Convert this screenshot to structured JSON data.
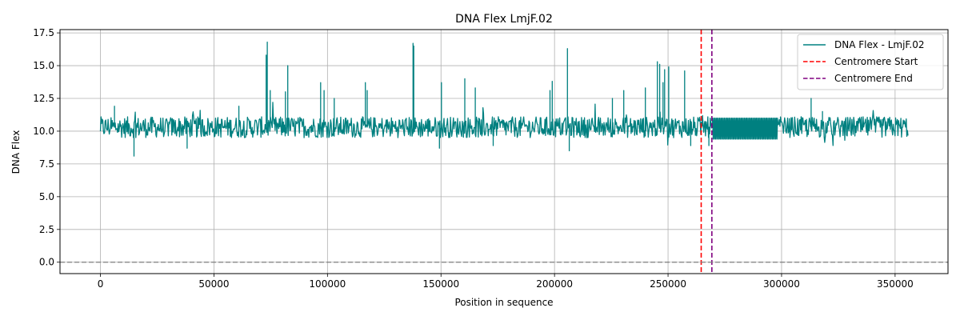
{
  "chart_data": {
    "type": "line",
    "title": "DNA Flex LmjF.02",
    "xlabel": "Position in sequence",
    "ylabel": "DNA Flex",
    "xlim": [
      -17800,
      373300
    ],
    "ylim": [
      -0.87,
      17.75
    ],
    "xticks": [
      0,
      50000,
      100000,
      150000,
      200000,
      250000,
      300000,
      350000
    ],
    "xtick_labels": [
      "0",
      "50000",
      "100000",
      "150000",
      "200000",
      "250000",
      "300000",
      "350000"
    ],
    "yticks": [
      0.0,
      2.5,
      5.0,
      7.5,
      10.0,
      12.5,
      15.0,
      17.5
    ],
    "ytick_labels": [
      "0.0",
      "2.5",
      "5.0",
      "7.5",
      "10.0",
      "12.5",
      "15.0",
      "17.5"
    ],
    "grid": true,
    "legend_position": "top-right",
    "series": [
      {
        "name": "DNA Flex - LmjF.02",
        "color": "#008080",
        "baseline": 10.3,
        "x_range": [
          0,
          355700
        ],
        "peaks": [
          [
            6200,
            11.9
          ],
          [
            14800,
            8.1
          ],
          [
            38200,
            8.7
          ],
          [
            61000,
            11.9
          ],
          [
            73000,
            15.8
          ],
          [
            73500,
            16.8
          ],
          [
            74800,
            13.1
          ],
          [
            81500,
            13.0
          ],
          [
            82500,
            15.0
          ],
          [
            97000,
            13.7
          ],
          [
            98500,
            13.1
          ],
          [
            103000,
            12.5
          ],
          [
            116700,
            13.7
          ],
          [
            117500,
            13.1
          ],
          [
            137700,
            16.7
          ],
          [
            138000,
            16.5
          ],
          [
            149300,
            8.7
          ],
          [
            150200,
            13.7
          ],
          [
            160500,
            14.0
          ],
          [
            165100,
            13.3
          ],
          [
            173000,
            8.9
          ],
          [
            198000,
            13.1
          ],
          [
            199000,
            13.8
          ],
          [
            205700,
            16.3
          ],
          [
            206500,
            8.5
          ],
          [
            225500,
            12.5
          ],
          [
            230500,
            13.1
          ],
          [
            240000,
            13.3
          ],
          [
            245300,
            15.3
          ],
          [
            246300,
            15.1
          ],
          [
            247800,
            13.7
          ],
          [
            248500,
            14.7
          ],
          [
            250300,
            14.9
          ],
          [
            257300,
            14.6
          ],
          [
            260000,
            8.9
          ],
          [
            268000,
            8.9
          ],
          [
            313000,
            12.5
          ],
          [
            318000,
            11.5
          ]
        ],
        "dense_segment": {
          "x_range": [
            269500,
            298000
          ],
          "values": [
            9.4,
            11.0
          ]
        }
      }
    ],
    "reference_lines": [
      {
        "name": "Centromere Start",
        "x": 264600,
        "color": "#ff0000",
        "style": "dashed"
      },
      {
        "name": "Centromere End",
        "x": 269300,
        "color": "#800080",
        "style": "dashed"
      },
      {
        "y": 0,
        "color": "#808080",
        "style": "dashed"
      }
    ]
  }
}
